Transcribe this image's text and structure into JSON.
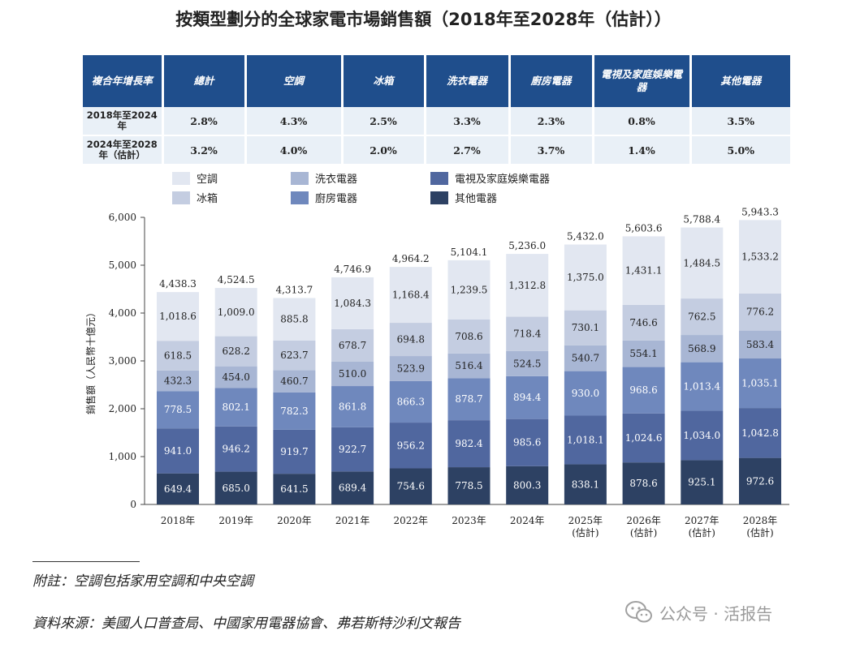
{
  "title": "按類型劃分的全球家電市場銷售額（2018年至2028年（估計））",
  "table": {
    "headers": [
      "複合年增長率",
      "總計",
      "空調",
      "冰箱",
      "洗衣電器",
      "廚房電器",
      "電視及家庭娛樂電器",
      "其他電器"
    ],
    "rows": [
      {
        "label": "2018年至2024年",
        "values": [
          "2.8%",
          "4.3%",
          "2.5%",
          "3.3%",
          "2.3%",
          "0.8%",
          "3.5%"
        ]
      },
      {
        "label": "2024年至2028年（估計）",
        "values": [
          "3.2%",
          "4.0%",
          "2.0%",
          "2.7%",
          "3.7%",
          "1.4%",
          "5.0%"
        ]
      }
    ]
  },
  "colors": {
    "header_bg": "#1f4e8c",
    "table_cell_bg": "#e9f0f7",
    "ac": "#e2e7f1",
    "fridge": "#c4cde1",
    "laundry": "#a8b6d4",
    "kitchen": "#6f88bd",
    "tv": "#50679f",
    "other": "#2d4163"
  },
  "chart_data": {
    "type": "bar",
    "stacked": true,
    "ylabel": "銷售額（人民幣十億元）",
    "ylim": [
      0,
      6000
    ],
    "yticks": [
      "0",
      "1,000",
      "2,000",
      "3,000",
      "4,000",
      "5,000",
      "6,000"
    ],
    "categories": [
      "2018年",
      "2019年",
      "2020年",
      "2021年",
      "2022年",
      "2023年",
      "2024年",
      "2025年\n(估計)",
      "2026年\n(估計)",
      "2027年\n(估計)",
      "2028年\n(估計)"
    ],
    "totals": [
      4438.3,
      4524.5,
      4313.7,
      4746.9,
      4964.2,
      5104.1,
      5236.0,
      5432.0,
      5603.6,
      5788.4,
      5943.3
    ],
    "totals_labels": [
      "4,438.3",
      "4,524.5",
      "4,313.7",
      "4,746.9",
      "4,964.2",
      "5,104.1",
      "5,236.0",
      "5,432.0",
      "5,603.6",
      "5,788.4",
      "5,943.3"
    ],
    "series": [
      {
        "name": "其他電器",
        "color_key": "other",
        "values": [
          649.4,
          685.0,
          641.5,
          689.4,
          754.6,
          778.5,
          800.3,
          838.1,
          878.6,
          925.1,
          972.6
        ],
        "labels": [
          "649.4",
          "685.0",
          "641.5",
          "689.4",
          "754.6",
          "778.5",
          "800.3",
          "838.1",
          "878.6",
          "925.1",
          "972.6"
        ]
      },
      {
        "name": "電視及家庭娛樂電器",
        "color_key": "tv",
        "values": [
          941.0,
          946.2,
          919.7,
          922.7,
          956.2,
          982.4,
          985.6,
          1018.1,
          1024.6,
          1034.0,
          1042.8
        ],
        "labels": [
          "941.0",
          "946.2",
          "919.7",
          "922.7",
          "956.2",
          "982.4",
          "985.6",
          "1,018.1",
          "1,024.6",
          "1,034.0",
          "1,042.8"
        ]
      },
      {
        "name": "廚房電器",
        "color_key": "kitchen",
        "values": [
          778.5,
          802.1,
          782.3,
          861.8,
          866.3,
          878.7,
          894.4,
          930.0,
          968.6,
          1013.4,
          1035.1
        ],
        "labels": [
          "778.5",
          "802.1",
          "782.3",
          "861.8",
          "866.3",
          "878.7",
          "894.4",
          "930.0",
          "968.6",
          "1,013.4",
          "1,035.1"
        ]
      },
      {
        "name": "洗衣電器",
        "color_key": "laundry",
        "values": [
          432.3,
          454.0,
          460.7,
          510.0,
          523.9,
          516.4,
          524.5,
          540.7,
          554.1,
          568.9,
          583.4
        ],
        "labels": [
          "432.3",
          "454.0",
          "460.7",
          "510.0",
          "523.9",
          "516.4",
          "524.5",
          "540.7",
          "554.1",
          "568.9",
          "583.4"
        ]
      },
      {
        "name": "冰箱",
        "color_key": "fridge",
        "values": [
          618.5,
          628.2,
          623.7,
          678.7,
          694.8,
          708.6,
          718.4,
          730.1,
          746.6,
          762.5,
          776.2
        ],
        "labels": [
          "618.5",
          "628.2",
          "623.7",
          "678.7",
          "694.8",
          "708.6",
          "718.4",
          "730.1",
          "746.6",
          "762.5",
          "776.2"
        ]
      },
      {
        "name": "空調",
        "color_key": "ac",
        "values": [
          1018.6,
          1009.0,
          885.8,
          1084.3,
          1168.4,
          1239.5,
          1312.8,
          1375.0,
          1431.1,
          1484.5,
          1533.2
        ],
        "labels": [
          "1,018.6",
          "1,009.0",
          "885.8",
          "1,084.3",
          "1,168.4",
          "1,239.5",
          "1,312.8",
          "1,375.0",
          "1,431.1",
          "1,484.5",
          "1,533.2"
        ]
      }
    ],
    "legend": [
      {
        "name": "空調",
        "color_key": "ac"
      },
      {
        "name": "冰箱",
        "color_key": "fridge"
      },
      {
        "name": "洗衣電器",
        "color_key": "laundry"
      },
      {
        "name": "廚房電器",
        "color_key": "kitchen"
      },
      {
        "name": "電視及家庭娛樂電器",
        "color_key": "tv"
      },
      {
        "name": "其他電器",
        "color_key": "other"
      }
    ],
    "legend_placement": "top",
    "grid": false
  },
  "notes": {
    "footnote": "附註：空調包括家用空調和中央空調",
    "source": "資料來源：美國人口普查局、中國家用電器協會、弗若斯特沙利文報告"
  },
  "watermark": {
    "text": "公众号 · 活报告",
    "icon": "wechat-icon"
  }
}
